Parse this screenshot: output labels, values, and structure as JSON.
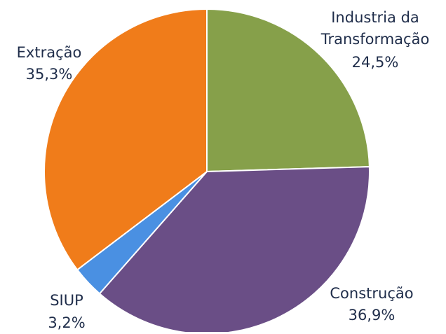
{
  "chart_data": {
    "type": "pie",
    "categories": [
      "Industria da Transformação",
      "Construção",
      "SIUP",
      "Extração"
    ],
    "values": [
      24.5,
      36.9,
      3.2,
      35.3
    ],
    "value_labels": [
      "24,5%",
      "36,9%",
      "3,2%",
      "35,3%"
    ],
    "colors": [
      "#86a04a",
      "#6a4e86",
      "#4a90e2",
      "#f07c1a"
    ]
  }
}
